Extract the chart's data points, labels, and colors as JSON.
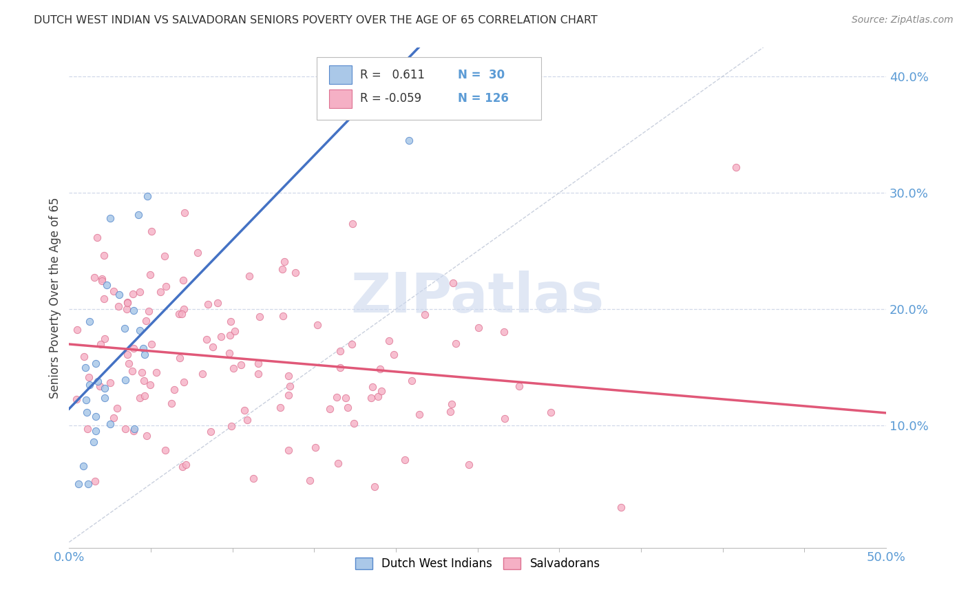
{
  "title": "DUTCH WEST INDIAN VS SALVADORAN SENIORS POVERTY OVER THE AGE OF 65 CORRELATION CHART",
  "source": "Source: ZipAtlas.com",
  "ylabel": "Seniors Poverty Over the Age of 65",
  "xmin": 0.0,
  "xmax": 0.5,
  "ymin": 0.0,
  "ymax": 0.42,
  "xtick_left_label": "0.0%",
  "xtick_right_label": "50.0%",
  "ytick_labels": [
    "10.0%",
    "20.0%",
    "30.0%",
    "40.0%"
  ],
  "ytick_values": [
    0.1,
    0.2,
    0.3,
    0.4
  ],
  "color_dutch": "#aac8e8",
  "color_dutch_edge": "#5588cc",
  "color_salvadoran": "#f5b0c5",
  "color_salvadoran_edge": "#dd7090",
  "color_dutch_line": "#4472c4",
  "color_salvadoran_line": "#e05878",
  "color_diagonal": "#c0c8d8",
  "background_color": "#ffffff",
  "grid_color": "#d0d8e8",
  "title_color": "#303030",
  "axis_label_color": "#5b9bd5",
  "watermark_color": "#ccd8ee",
  "legend_r1": "R =   0.611",
  "legend_n1": "N =  30",
  "legend_r2": "R = -0.059",
  "legend_n2": "N = 126",
  "dutch_seed": 42,
  "salvadoran_seed": 99,
  "N_dutch": 30,
  "N_salvadoran": 126
}
